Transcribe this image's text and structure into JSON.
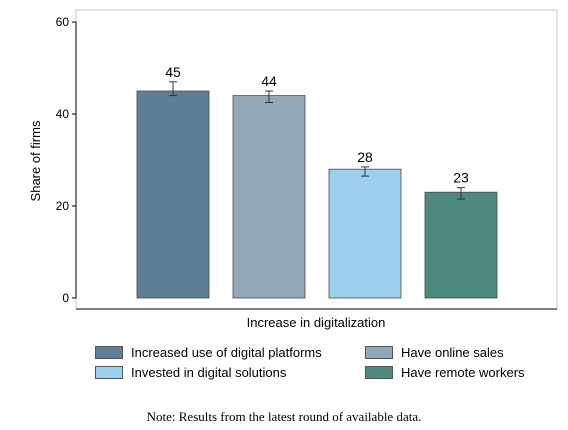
{
  "chart_data": {
    "type": "bar",
    "categories": [
      "Increased use of digital platforms",
      "Have online sales",
      "Invested in digital solutions",
      "Have remote workers"
    ],
    "values": [
      45,
      44,
      28,
      23
    ],
    "error_bars": [
      [
        44,
        47
      ],
      [
        42.5,
        45
      ],
      [
        26.5,
        28.5
      ],
      [
        21.5,
        24
      ]
    ],
    "data_labels": [
      "45",
      "44",
      "28",
      "23"
    ],
    "colors": [
      "#5f7f95",
      "#91a8b9",
      "#9dd0ee",
      "#4f8a7f"
    ],
    "xlabel": "Increase in digitalization",
    "ylabel": "Share of firms",
    "ylim": [
      0,
      60
    ],
    "yticks": [
      "0",
      "20",
      "40",
      "60"
    ],
    "legend_position": "bottom",
    "grid": false
  },
  "legend": {
    "items": [
      {
        "label": "Increased use of digital platforms",
        "color": "#5f7f95"
      },
      {
        "label": "Have online sales",
        "color": "#91a8b9"
      },
      {
        "label": "Invested in digital solutions",
        "color": "#9dd0ee"
      },
      {
        "label": "Have remote workers",
        "color": "#4f8a7f"
      }
    ]
  },
  "note": "Note: Results from the latest round of available data."
}
